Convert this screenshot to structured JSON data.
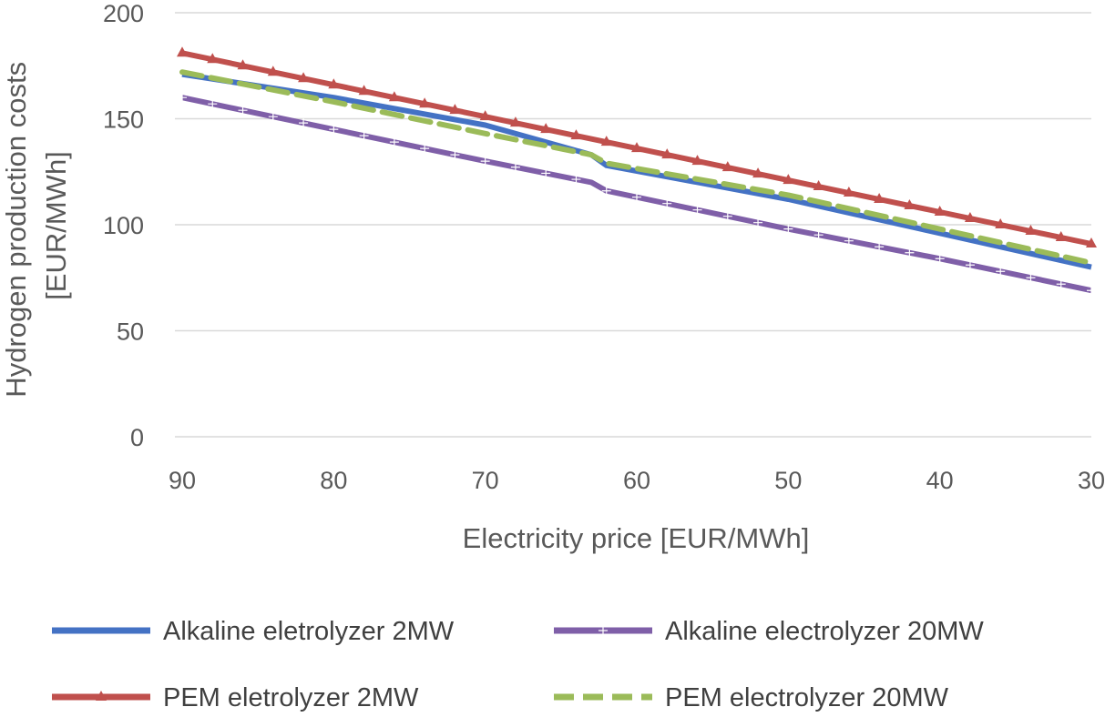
{
  "chart_data": {
    "type": "line",
    "title": "",
    "xlabel": "Electricity price [EUR/MWh]",
    "ylabel_lines": [
      "Hydrogen production costs",
      "[EUR/MWh]"
    ],
    "x_reversed": true,
    "xlim": [
      90,
      30
    ],
    "ylim": [
      0,
      200
    ],
    "x_ticks": [
      "90",
      "80",
      "70",
      "60",
      "50",
      "40",
      "30"
    ],
    "y_ticks": [
      "0",
      "50",
      "100",
      "150",
      "200"
    ],
    "grid": "horizontal",
    "legend_position": "bottom",
    "series": [
      {
        "name": "Alkaline eletrolyzer 2MW",
        "color": "#4472C4",
        "style": "solid",
        "marker": "none",
        "x": [
          90,
          80,
          70,
          63,
          62,
          50,
          40,
          30
        ],
        "y": [
          171,
          160,
          147,
          133,
          128,
          112,
          96,
          80
        ]
      },
      {
        "name": "Alkaline electrolyzer 20MW",
        "color": "#7F5FA8",
        "style": "solid",
        "marker": "plus",
        "x": [
          90,
          80,
          70,
          63,
          62,
          50,
          40,
          30
        ],
        "y": [
          160,
          145,
          130,
          120,
          116,
          98,
          84,
          69
        ]
      },
      {
        "name": "PEM eletrolyzer 2MW",
        "color": "#C0504D",
        "style": "solid",
        "marker": "triangle",
        "x": [
          90,
          80,
          70,
          60,
          50,
          40,
          30
        ],
        "y": [
          181,
          166,
          151,
          136,
          121,
          106,
          91
        ]
      },
      {
        "name": "PEM electrolyzer 20MW",
        "color": "#9BBB59",
        "style": "dashed",
        "marker": "none",
        "x": [
          90,
          80,
          70,
          63,
          62,
          50,
          40,
          30
        ],
        "y": [
          172,
          158,
          143,
          133,
          129,
          114,
          98,
          82
        ]
      }
    ]
  }
}
